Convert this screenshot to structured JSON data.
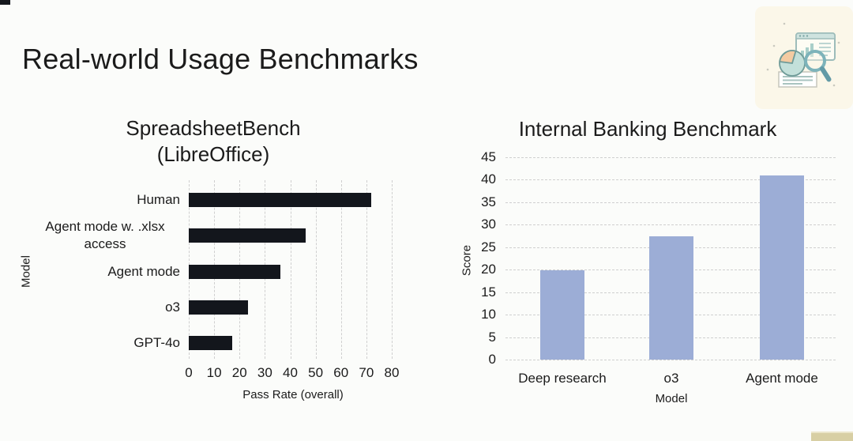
{
  "page": {
    "title": "Real-world Usage Benchmarks",
    "background": "#fbfcfa"
  },
  "decor": {
    "corner_illustration": "chart-analysis-illustration",
    "corner_card_bg": "#fbf7e9",
    "top_left_mark_color": "#15181d",
    "bottom_right_fragment_color": "#d8cfa4"
  },
  "colors": {
    "grid": "#cfcfcf",
    "text": "#1b1b1b",
    "left_bar": "#13161c",
    "right_bar": "#9cadd6"
  },
  "chart_data": [
    {
      "type": "bar",
      "orientation": "horizontal",
      "title": "SpreadsheetBench (LibreOffice)",
      "title_lines": [
        "SpreadsheetBench",
        "(LibreOffice)"
      ],
      "categories": [
        "Human",
        "Agent mode w. .xlsx access",
        "Agent mode",
        "o3",
        "GPT-4o"
      ],
      "category_label_lines": [
        [
          "Human"
        ],
        [
          "Agent mode w. .xlsx",
          "access"
        ],
        [
          "Agent mode"
        ],
        [
          "o3"
        ],
        [
          "GPT-4o"
        ]
      ],
      "values": [
        72,
        46,
        36,
        23.5,
        17
      ],
      "xlabel": "Pass Rate (overall)",
      "ylabel": "Model",
      "xlim": [
        0,
        80
      ],
      "xticks": [
        0,
        10,
        20,
        30,
        40,
        50,
        60,
        70,
        80
      ],
      "grid": "vertical-dashed",
      "legend": "none",
      "bar_color": "#13161c"
    },
    {
      "type": "bar",
      "orientation": "vertical",
      "title": "Internal Banking Benchmark",
      "categories": [
        "Deep research",
        "o3",
        "Agent mode"
      ],
      "values": [
        19.8,
        27.5,
        41
      ],
      "xlabel": "Model",
      "ylabel": "Score",
      "ylim": [
        0,
        45
      ],
      "yticks": [
        0,
        5,
        10,
        15,
        20,
        25,
        30,
        35,
        40,
        45
      ],
      "grid": "horizontal-dashed",
      "legend": "none",
      "bar_color": "#9cadd6"
    }
  ]
}
